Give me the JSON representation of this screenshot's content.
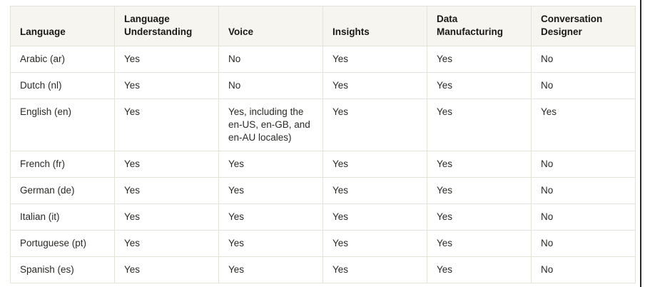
{
  "table": {
    "name": "language-feature-support",
    "columns": [
      "Language",
      "Language Understanding",
      "Voice",
      "Insights",
      "Data Manufacturing",
      "Conversation Designer"
    ],
    "rows": [
      [
        "Arabic (ar)",
        "Yes",
        "No",
        "Yes",
        "Yes",
        "No"
      ],
      [
        "Dutch (nl)",
        "Yes",
        "No",
        "Yes",
        "Yes",
        "No"
      ],
      [
        "English (en)",
        "Yes",
        "Yes, including the en-US, en-GB, and en-AU locales)",
        "Yes",
        "Yes",
        "Yes"
      ],
      [
        "French (fr)",
        "Yes",
        "Yes",
        "Yes",
        "Yes",
        "No"
      ],
      [
        "German (de)",
        "Yes",
        "Yes",
        "Yes",
        "Yes",
        "No"
      ],
      [
        "Italian (it)",
        "Yes",
        "Yes",
        "Yes",
        "Yes",
        "No"
      ],
      [
        "Portuguese (pt)",
        "Yes",
        "Yes",
        "Yes",
        "Yes",
        "No"
      ],
      [
        "Spanish (es)",
        "Yes",
        "Yes",
        "Yes",
        "Yes",
        "No"
      ]
    ]
  },
  "colors": {
    "header_background": "#f7f5f0",
    "header_text": "#1a1816",
    "cell_text": "#2b2925",
    "border": "#e5e2d9",
    "page_edge_line": "#2e2b27",
    "page_background": "#ffffff"
  }
}
